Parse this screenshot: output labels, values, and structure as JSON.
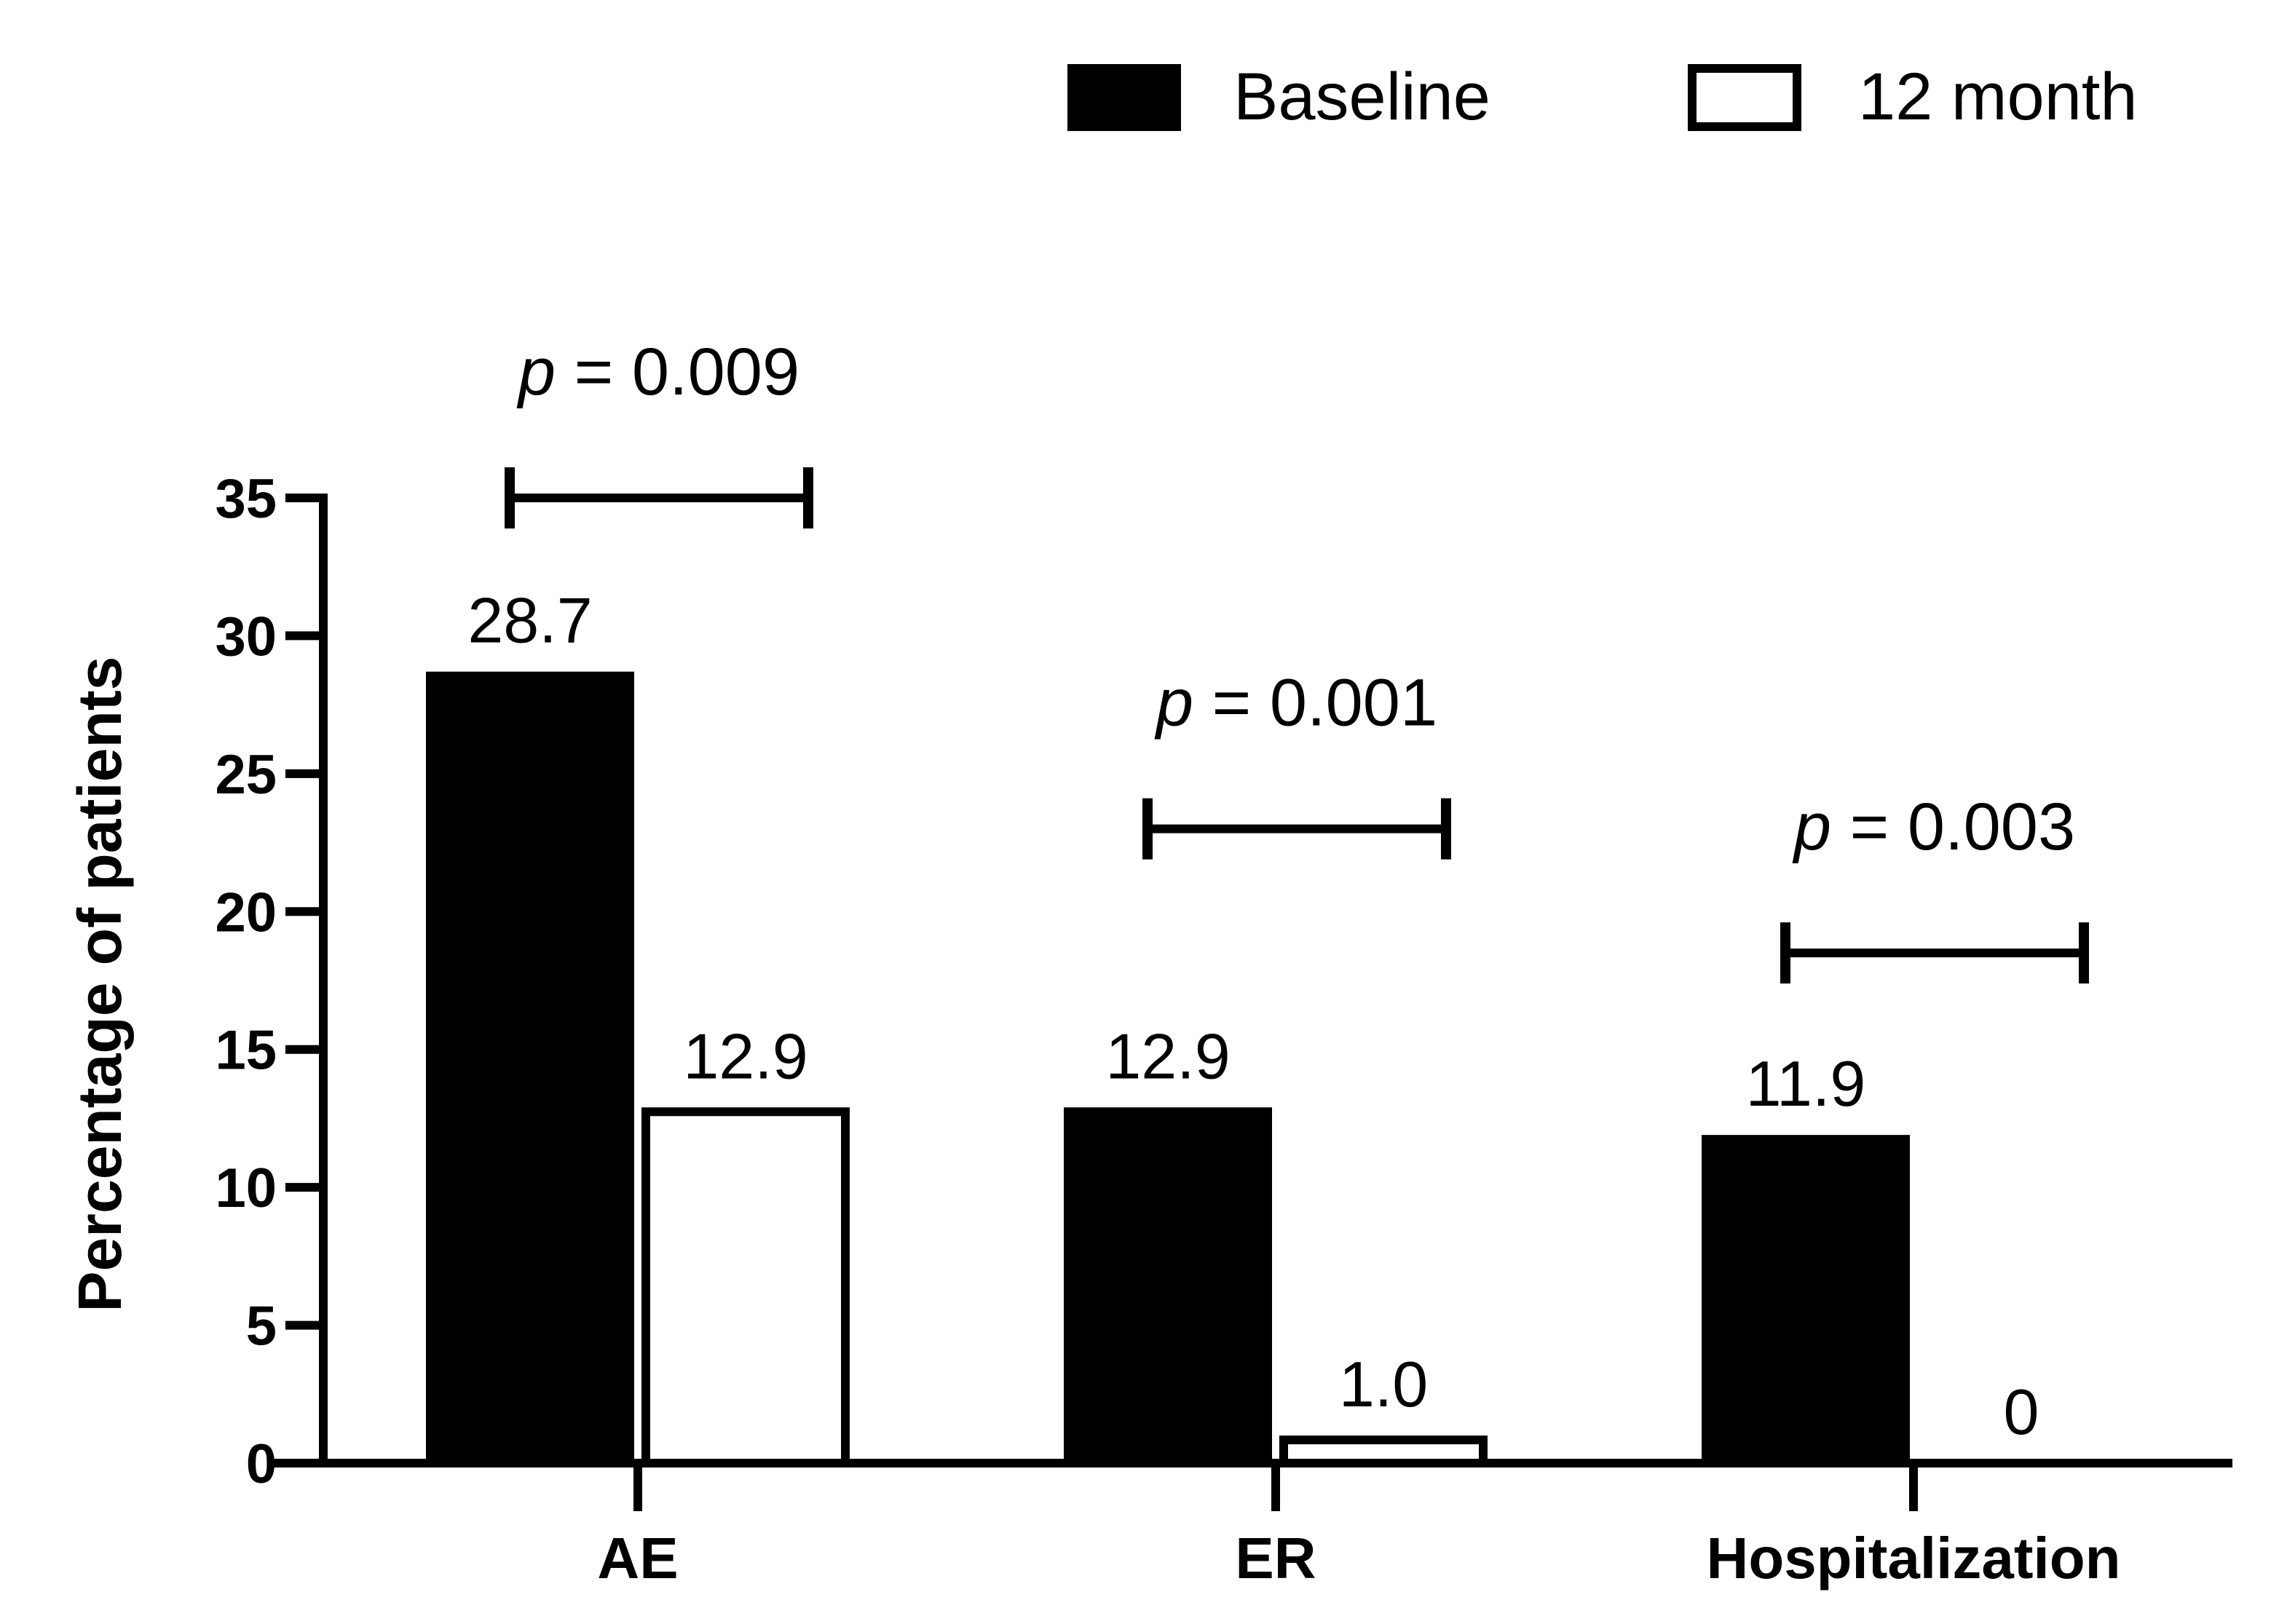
{
  "chart_data": {
    "type": "bar",
    "title": "",
    "xlabel": "",
    "ylabel": "Percentage of patients",
    "ylim": [
      0,
      35
    ],
    "yticks": [
      0,
      5,
      10,
      15,
      20,
      25,
      30,
      35
    ],
    "categories": [
      "AE",
      "ER",
      "Hospitalization"
    ],
    "series": [
      {
        "name": "Baseline",
        "fill": "#000000",
        "values": [
          28.7,
          12.9,
          11.9
        ],
        "labels": [
          "28.7",
          "12.9",
          "11.9"
        ]
      },
      {
        "name": "12 month",
        "fill": "#ffffff",
        "values": [
          12.9,
          1.0,
          0
        ],
        "labels": [
          "12.9",
          "1.0",
          "0"
        ]
      }
    ],
    "annotations": [
      {
        "category": "AE",
        "p_symbol": "p",
        "p_text": " = 0.009",
        "bracket_value": 35
      },
      {
        "category": "ER",
        "p_symbol": "p",
        "p_text": " = 0.001",
        "bracket_value": 23
      },
      {
        "category": "Hospitalization",
        "p_symbol": "p",
        "p_text": " = 0.003",
        "bracket_value": 18.5
      }
    ],
    "legend": {
      "position": "top-right",
      "entries": [
        "Baseline",
        "12 month"
      ]
    },
    "grid": false,
    "colors": {
      "axis": "#000000",
      "baseline": "#000000",
      "twelve_month": "#ffffff"
    }
  }
}
